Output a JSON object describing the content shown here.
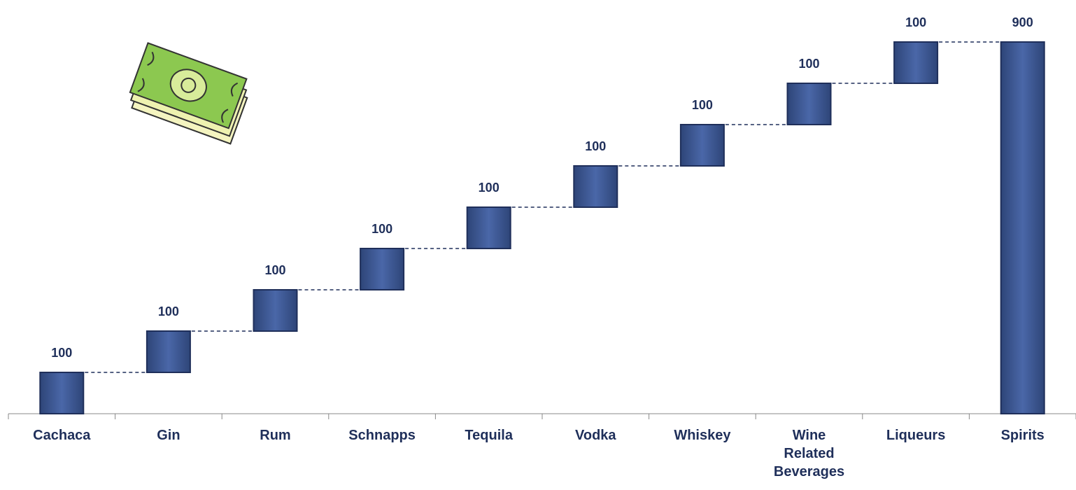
{
  "chart_data": {
    "type": "waterfall",
    "categories": [
      "Cachaca",
      "Gin",
      "Rum",
      "Schnapps",
      "Tequila",
      "Vodka",
      "Whiskey",
      "Wine Related Beverages",
      "Liqueurs",
      "Spirits"
    ],
    "values": [
      100,
      100,
      100,
      100,
      100,
      100,
      100,
      100,
      100,
      900
    ],
    "measures": [
      "relative",
      "relative",
      "relative",
      "relative",
      "relative",
      "relative",
      "relative",
      "relative",
      "relative",
      "total"
    ],
    "color": "#3d5a98"
  }
}
